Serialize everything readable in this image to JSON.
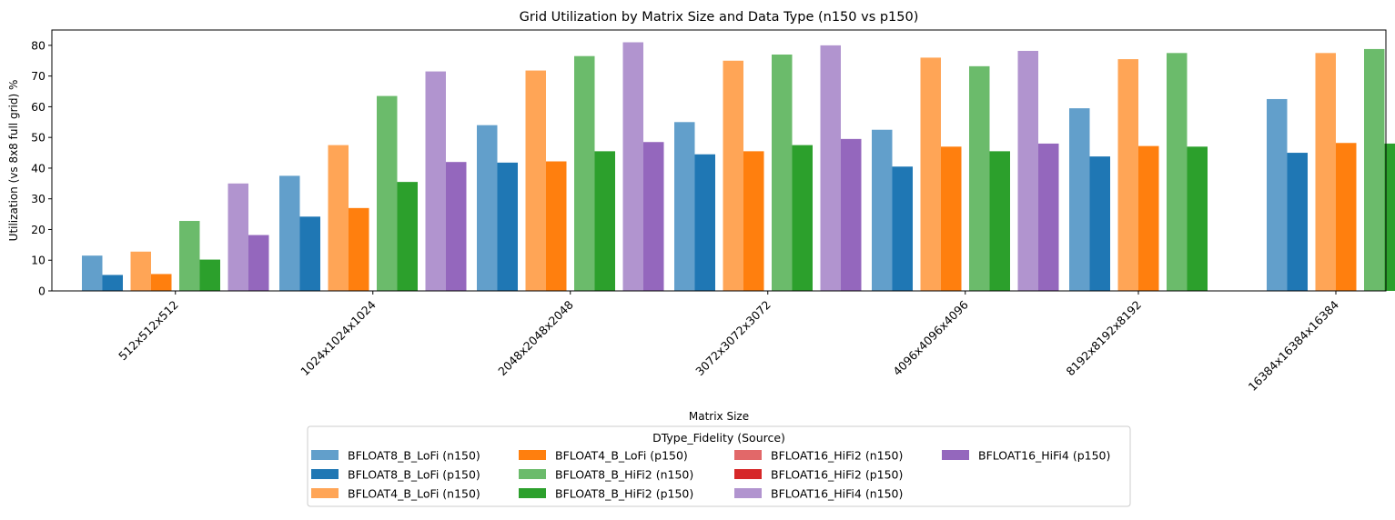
{
  "chart_data": {
    "type": "bar",
    "title": "Grid Utilization by Matrix Size and Data Type (n150 vs p150)",
    "xlabel": "Matrix Size",
    "ylabel": "Utilization (vs 8x8 full grid) %",
    "ylim": [
      0,
      85
    ],
    "yticks": [
      0,
      10,
      20,
      30,
      40,
      50,
      60,
      70,
      80
    ],
    "grid": false,
    "legend": {
      "title": "DType_Fidelity (Source)",
      "placement": "below"
    },
    "categories": [
      "512x512x512",
      "1024x1024x1024",
      "2048x2048x2048",
      "3072x3072x3072",
      "4096x4096x4096",
      "8192x8192x8192",
      "16384x16384x16384"
    ],
    "series": [
      {
        "name": "BFLOAT8_B_LoFi (n150)",
        "color": "#629fcb",
        "values": [
          11.5,
          37.5,
          54.0,
          55.0,
          52.5,
          59.5,
          62.5
        ]
      },
      {
        "name": "BFLOAT8_B_LoFi (p150)",
        "color": "#1f77b4",
        "values": [
          5.2,
          24.2,
          41.8,
          44.5,
          40.5,
          43.8,
          45.0
        ]
      },
      {
        "name": "BFLOAT4_B_LoFi (n150)",
        "color": "#ffa556",
        "values": [
          12.8,
          47.5,
          71.8,
          75.0,
          76.0,
          75.5,
          77.5
        ]
      },
      {
        "name": "BFLOAT4_B_LoFi (p150)",
        "color": "#ff7f0e",
        "values": [
          5.5,
          27.0,
          42.2,
          45.5,
          47.0,
          47.2,
          48.2
        ]
      },
      {
        "name": "BFLOAT8_B_HiFi2 (n150)",
        "color": "#6bbb6b",
        "values": [
          22.8,
          63.5,
          76.5,
          77.0,
          73.2,
          77.5,
          78.8
        ]
      },
      {
        "name": "BFLOAT8_B_HiFi2 (p150)",
        "color": "#2ca02c",
        "values": [
          10.2,
          35.5,
          45.5,
          47.5,
          45.5,
          47.0,
          48.0
        ]
      },
      {
        "name": "BFLOAT16_HiFi2 (n150)",
        "color": "#e26869",
        "values": [
          null,
          null,
          null,
          null,
          null,
          null,
          null
        ]
      },
      {
        "name": "BFLOAT16_HiFi2 (p150)",
        "color": "#d62728",
        "values": [
          null,
          null,
          null,
          null,
          null,
          null,
          null
        ]
      },
      {
        "name": "BFLOAT16_HiFi4 (n150)",
        "color": "#b194cf",
        "values": [
          35.0,
          71.5,
          81.0,
          80.0,
          78.2,
          null,
          null
        ]
      },
      {
        "name": "BFLOAT16_HiFi4 (p150)",
        "color": "#9467bd",
        "values": [
          18.2,
          42.0,
          48.5,
          49.5,
          48.0,
          null,
          null
        ]
      }
    ]
  }
}
